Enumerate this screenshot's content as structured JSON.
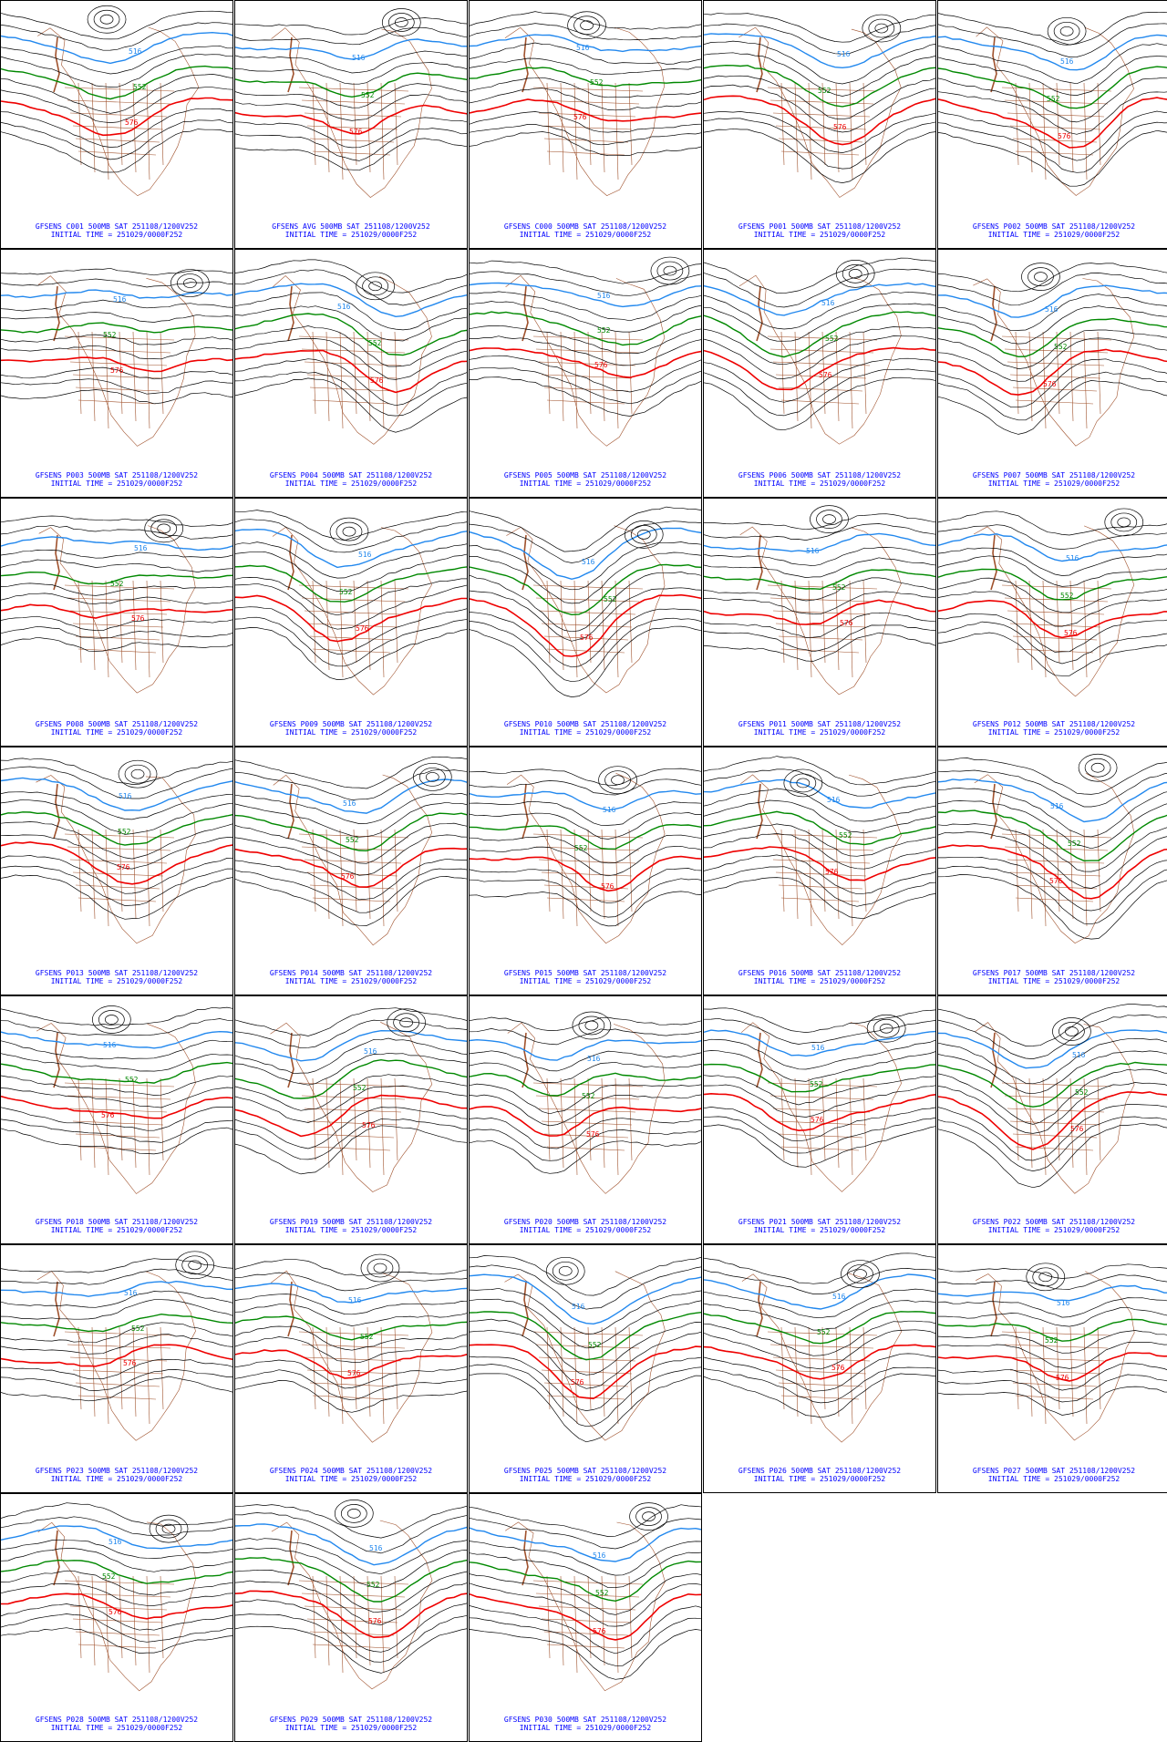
{
  "colors": {
    "contour": "#000000",
    "coast": "#a0522d",
    "contour_552": "#008800",
    "contour_516": "#2288ee",
    "contour_576": "#ee0000",
    "caption": "#0000ff"
  },
  "initial_time": "INITIAL TIME = 251029/0000F252",
  "panels": [
    {
      "name": "GFSENS C001",
      "caption": "GFSENS C001 500MB SAT 251108/1200V252"
    },
    {
      "name": "GFSENS AVG",
      "caption": "GFSENS AVG 500MB SAT 251108/1200V252"
    },
    {
      "name": "GFSENS C000",
      "caption": "GFSENS C000 500MB SAT 251108/1200V252"
    },
    {
      "name": "GFSENS P001",
      "caption": "GFSENS P001 500MB SAT 251108/1200V252"
    },
    {
      "name": "GFSENS P002",
      "caption": "GFSENS P002 500MB SAT 251108/1200V252"
    },
    {
      "name": "GFSENS P003",
      "caption": "GFSENS P003 500MB SAT 251108/1200V252"
    },
    {
      "name": "GFSENS P004",
      "caption": "GFSENS P004 500MB SAT 251108/1200V252"
    },
    {
      "name": "GFSENS P005",
      "caption": "GFSENS P005 500MB SAT 251108/1200V252"
    },
    {
      "name": "GFSENS P006",
      "caption": "GFSENS P006 500MB SAT 251108/1200V252"
    },
    {
      "name": "GFSENS P007",
      "caption": "GFSENS P007 500MB SAT 251108/1200V252"
    },
    {
      "name": "GFSENS P008",
      "caption": "GFSENS P008 500MB SAT 251108/1200V252"
    },
    {
      "name": "GFSENS P009",
      "caption": "GFSENS P009 500MB SAT 251108/1200V252"
    },
    {
      "name": "GFSENS P010",
      "caption": "GFSENS P010 500MB SAT 251108/1200V252"
    },
    {
      "name": "GFSENS P011",
      "caption": "GFSENS P011 500MB SAT 251108/1200V252"
    },
    {
      "name": "GFSENS P012",
      "caption": "GFSENS P012 500MB SAT 251108/1200V252"
    },
    {
      "name": "GFSENS P013",
      "caption": "GFSENS P013 500MB SAT 251108/1200V252"
    },
    {
      "name": "GFSENS P014",
      "caption": "GFSENS P014 500MB SAT 251108/1200V252"
    },
    {
      "name": "GFSENS P015",
      "caption": "GFSENS P015 500MB SAT 251108/1200V252"
    },
    {
      "name": "GFSENS P016",
      "caption": "GFSENS P016 500MB SAT 251108/1200V252"
    },
    {
      "name": "GFSENS P017",
      "caption": "GFSENS P017 500MB SAT 251108/1200V252"
    },
    {
      "name": "GFSENS P018",
      "caption": "GFSENS P018 500MB SAT 251108/1200V252"
    },
    {
      "name": "GFSENS P019",
      "caption": "GFSENS P019 500MB SAT 251108/1200V252"
    },
    {
      "name": "GFSENS P020",
      "caption": "GFSENS P020 500MB SAT 251108/1200V252"
    },
    {
      "name": "GFSENS P021",
      "caption": "GFSENS P021 500MB SAT 251108/1200V252"
    },
    {
      "name": "GFSENS P022",
      "caption": "GFSENS P022 500MB SAT 251108/1200V252"
    },
    {
      "name": "GFSENS P023",
      "caption": "GFSENS P023 500MB SAT 251108/1200V252"
    },
    {
      "name": "GFSENS P024",
      "caption": "GFSENS P024 500MB SAT 251108/1200V252"
    },
    {
      "name": "GFSENS P025",
      "caption": "GFSENS P025 500MB SAT 251108/1200V252"
    },
    {
      "name": "GFSENS P026",
      "caption": "GFSENS P026 500MB SAT 251108/1200V252"
    },
    {
      "name": "GFSENS P027",
      "caption": "GFSENS P027 500MB SAT 251108/1200V252"
    },
    {
      "name": "GFSENS P028",
      "caption": "GFSENS P028 500MB SAT 251108/1200V252"
    },
    {
      "name": "GFSENS P029",
      "caption": "GFSENS P029 500MB SAT 251108/1200V252"
    },
    {
      "name": "GFSENS P030",
      "caption": "GFSENS P030 500MB SAT 251108/1200V252"
    }
  ],
  "contour_labels": {
    "upper": "516",
    "middle": "552",
    "lower": "576"
  }
}
